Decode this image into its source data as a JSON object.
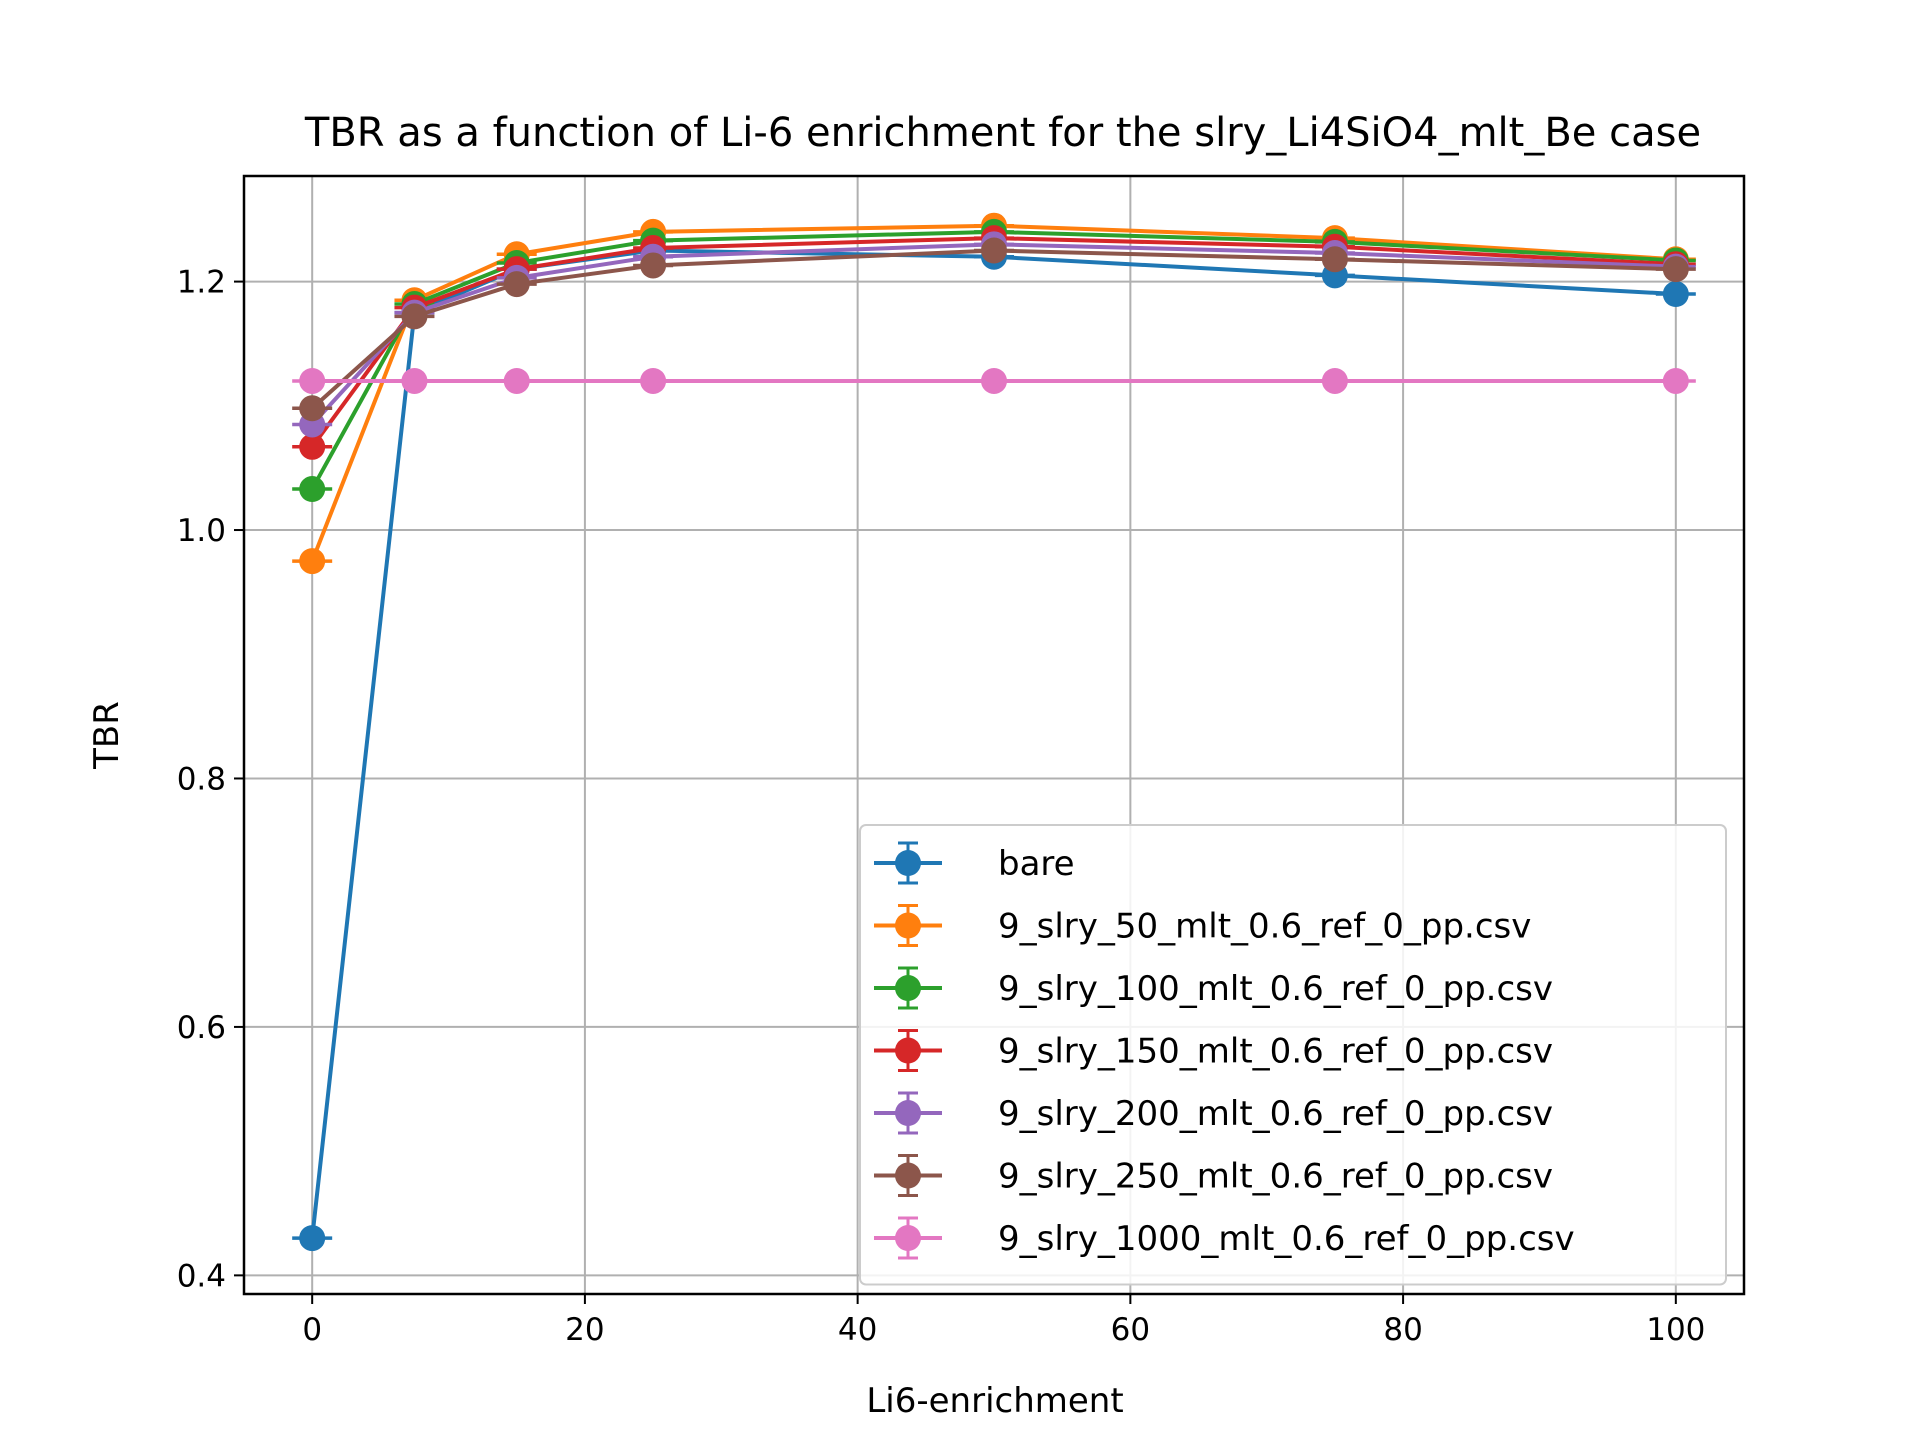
{
  "chart_data": {
    "type": "line",
    "title": "TBR as a function of Li-6 enrichment for the slry_Li4SiO4_mlt_Be case",
    "xlabel": "Li6-enrichment",
    "ylabel": "TBR",
    "xlim": [
      -5,
      105
    ],
    "ylim": [
      0.385,
      1.285
    ],
    "xticks": [
      0,
      20,
      40,
      60,
      80,
      100
    ],
    "xtick_labels": [
      "0",
      "20",
      "40",
      "60",
      "80",
      "100"
    ],
    "yticks": [
      0.4,
      0.6,
      0.8,
      1.0,
      1.2
    ],
    "ytick_labels": [
      "0.4",
      "0.6",
      "0.8",
      "1.0",
      "1.2"
    ],
    "grid": true,
    "legend_position": "lower-right",
    "markers": "circle with error bars",
    "x": [
      0,
      7.5,
      15,
      25,
      50,
      75,
      100
    ],
    "series": [
      {
        "name": "bare",
        "color": "#1f77b4",
        "values": [
          0.43,
          1.175,
          1.21,
          1.225,
          1.22,
          1.205,
          1.19
        ]
      },
      {
        "name": "9_slry_50_mlt_0.6_ref_0_pp.csv",
        "color": "#ff7f0e",
        "values": [
          0.975,
          1.185,
          1.222,
          1.24,
          1.245,
          1.235,
          1.218
        ]
      },
      {
        "name": "9_slry_100_mlt_0.6_ref_0_pp.csv",
        "color": "#2ca02c",
        "values": [
          1.033,
          1.182,
          1.215,
          1.233,
          1.24,
          1.232,
          1.217
        ]
      },
      {
        "name": "9_slry_150_mlt_0.6_ref_0_pp.csv",
        "color": "#d62728",
        "values": [
          1.067,
          1.179,
          1.21,
          1.227,
          1.235,
          1.228,
          1.214
        ]
      },
      {
        "name": "9_slry_200_mlt_0.6_ref_0_pp.csv",
        "color": "#9467bd",
        "values": [
          1.085,
          1.175,
          1.203,
          1.22,
          1.23,
          1.223,
          1.212
        ]
      },
      {
        "name": "9_slry_250_mlt_0.6_ref_0_pp.csv",
        "color": "#8c564b",
        "values": [
          1.098,
          1.172,
          1.198,
          1.213,
          1.225,
          1.218,
          1.21
        ]
      },
      {
        "name": "9_slry_1000_mlt_0.6_ref_0_pp.csv",
        "color": "#e377c2",
        "values": [
          1.12,
          1.12,
          1.12,
          1.12,
          1.12,
          1.12,
          1.12
        ]
      }
    ]
  }
}
